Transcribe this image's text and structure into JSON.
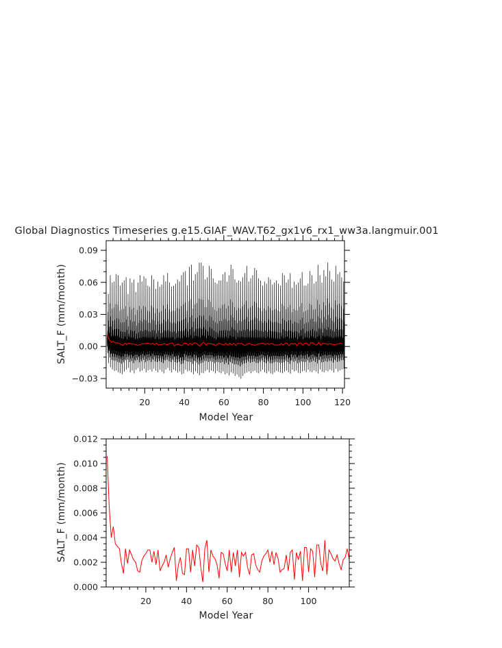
{
  "title": "Global Diagnostics Timeseries g.e15.GIAF_WAV.T62_gx1v6_rx1_ww3a.langmuir.001",
  "colors": {
    "monthly": "#000000",
    "annual": "#ff0000",
    "axis": "#000000",
    "text": "#222222"
  },
  "chart_data": [
    {
      "type": "line",
      "name": "monthly-panel",
      "xlabel": "Model Year",
      "ylabel": "SALT_F (mm/month)",
      "xlim": [
        0.5,
        121
      ],
      "ylim": [
        -0.039,
        0.099
      ],
      "xticks": [
        20,
        40,
        60,
        80,
        100,
        120
      ],
      "xtick_labels": [
        "20",
        "40",
        "60",
        "80",
        "100",
        "120"
      ],
      "yticks": [
        -0.03,
        0.0,
        0.03,
        0.06,
        0.09
      ],
      "ytick_labels": [
        "−0.03",
        "0.00",
        "0.03",
        "0.06",
        "0.09"
      ],
      "series": [
        {
          "kind": "monthly",
          "color": "#000000",
          "annual_peaks": [
            0.05,
            0.068,
            0.061,
            0.062,
            0.069,
            0.068,
            0.058,
            0.061,
            0.063,
            0.066,
            0.05,
            0.065,
            0.061,
            0.064,
            0.052,
            0.061,
            0.068,
            0.062,
            0.067,
            0.065,
            0.058,
            0.057,
            0.068,
            0.064,
            0.055,
            0.062,
            0.057,
            0.059,
            0.068,
            0.062,
            0.07,
            0.061,
            0.057,
            0.058,
            0.06,
            0.064,
            0.062,
            0.068,
            0.071,
            0.072,
            0.058,
            0.076,
            0.078,
            0.063,
            0.069,
            0.071,
            0.08,
            0.08,
            0.077,
            0.064,
            0.066,
            0.077,
            0.074,
            0.065,
            0.061,
            0.06,
            0.063,
            0.063,
            0.069,
            0.071,
            0.062,
            0.068,
            0.078,
            0.074,
            0.064,
            0.061,
            0.063,
            0.062,
            0.066,
            0.07,
            0.077,
            0.062,
            0.065,
            0.068,
            0.075,
            0.073,
            0.065,
            0.063,
            0.058,
            0.062,
            0.06,
            0.066,
            0.064,
            0.059,
            0.061,
            0.063,
            0.06,
            0.058,
            0.07,
            0.068,
            0.061,
            0.064,
            0.07,
            0.056,
            0.062,
            0.059,
            0.061,
            0.065,
            0.071,
            0.058,
            0.058,
            0.06,
            0.072,
            0.068,
            0.06,
            0.062,
            0.078,
            0.068,
            0.061,
            0.073,
            0.067,
            0.08,
            0.072,
            0.064,
            0.062,
            0.077,
            0.069,
            0.071,
            0.066,
            0.062
          ],
          "annual_troughs": [
            -0.02,
            -0.024,
            -0.026,
            -0.028,
            -0.027,
            -0.029,
            -0.03,
            -0.031,
            -0.028,
            -0.026,
            -0.024,
            -0.029,
            -0.027,
            -0.03,
            -0.026,
            -0.024,
            -0.028,
            -0.027,
            -0.025,
            -0.029,
            -0.027,
            -0.026,
            -0.028,
            -0.025,
            -0.027,
            -0.029,
            -0.026,
            -0.028,
            -0.03,
            -0.026,
            -0.024,
            -0.027,
            -0.029,
            -0.026,
            -0.027,
            -0.029,
            -0.028,
            -0.031,
            -0.03,
            -0.026,
            -0.028,
            -0.027,
            -0.029,
            -0.031,
            -0.028,
            -0.03,
            -0.032,
            -0.029,
            -0.03,
            -0.028,
            -0.026,
            -0.029,
            -0.027,
            -0.028,
            -0.03,
            -0.027,
            -0.029,
            -0.03,
            -0.028,
            -0.031,
            -0.03,
            -0.032,
            -0.029,
            -0.03,
            -0.033,
            -0.031,
            -0.034,
            -0.036,
            -0.033,
            -0.03,
            -0.029,
            -0.028,
            -0.03,
            -0.028,
            -0.027,
            -0.029,
            -0.03,
            -0.028,
            -0.026,
            -0.029,
            -0.03,
            -0.028,
            -0.03,
            -0.031,
            -0.029,
            -0.027,
            -0.028,
            -0.029,
            -0.03,
            -0.028,
            -0.027,
            -0.029,
            -0.03,
            -0.026,
            -0.028,
            -0.027,
            -0.029,
            -0.03,
            -0.028,
            -0.027,
            -0.029,
            -0.026,
            -0.028,
            -0.029,
            -0.027,
            -0.028,
            -0.03,
            -0.026,
            -0.028,
            -0.029,
            -0.027,
            -0.028,
            -0.026,
            -0.027,
            -0.029,
            -0.025,
            -0.028,
            -0.027,
            -0.026,
            -0.025
          ]
        },
        {
          "kind": "annual",
          "color": "#ff0000",
          "values_ref": "annual_mean"
        }
      ]
    },
    {
      "type": "line",
      "name": "annual-panel",
      "xlabel": "Model Year",
      "ylabel": "SALT_F (mm/month)",
      "xlim": [
        0.5,
        120
      ],
      "ylim": [
        0.0,
        0.012
      ],
      "xticks": [
        20,
        40,
        60,
        80,
        100
      ],
      "xtick_labels": [
        "20",
        "40",
        "60",
        "80",
        "100"
      ],
      "yticks": [
        0.0,
        0.002,
        0.004,
        0.006,
        0.008,
        0.01,
        0.012
      ],
      "ytick_labels": [
        "0.000",
        "0.002",
        "0.004",
        "0.006",
        "0.008",
        "0.010",
        "0.012"
      ],
      "series": [
        {
          "kind": "annual",
          "color": "#ff0000",
          "values_ref": "annual_mean"
        }
      ]
    }
  ],
  "annual_mean": {
    "x": [
      1,
      2,
      3,
      4,
      5,
      6,
      7,
      8,
      9,
      10,
      11,
      12,
      13,
      14,
      15,
      16,
      17,
      18,
      19,
      20,
      21,
      22,
      23,
      24,
      25,
      26,
      27,
      28,
      29,
      30,
      31,
      32,
      33,
      34,
      35,
      36,
      37,
      38,
      39,
      40,
      41,
      42,
      43,
      44,
      45,
      46,
      47,
      48,
      49,
      50,
      51,
      52,
      53,
      54,
      55,
      56,
      57,
      58,
      59,
      60,
      61,
      62,
      63,
      64,
      65,
      66,
      67,
      68,
      69,
      70,
      71,
      72,
      73,
      74,
      75,
      76,
      77,
      78,
      79,
      80,
      81,
      82,
      83,
      84,
      85,
      86,
      87,
      88,
      89,
      90,
      91,
      92,
      93,
      94,
      95,
      96,
      97,
      98,
      99,
      100,
      101,
      102,
      103,
      104,
      105,
      106,
      107,
      108,
      109,
      110,
      111,
      112,
      113,
      114,
      115,
      116,
      117,
      118,
      119,
      120
    ],
    "values": [
      0.0106,
      0.0065,
      0.004,
      0.0049,
      0.0035,
      0.0033,
      0.0031,
      0.0019,
      0.0011,
      0.0031,
      0.0019,
      0.003,
      0.0026,
      0.0022,
      0.002,
      0.0013,
      0.0012,
      0.0021,
      0.0025,
      0.0027,
      0.003,
      0.003,
      0.002,
      0.0029,
      0.0018,
      0.003,
      0.0013,
      0.0017,
      0.002,
      0.0026,
      0.0016,
      0.0023,
      0.0028,
      0.0032,
      0.0005,
      0.0018,
      0.0024,
      0.0011,
      0.001,
      0.0031,
      0.0031,
      0.0012,
      0.003,
      0.0017,
      0.0034,
      0.0032,
      0.0016,
      0.0004,
      0.0031,
      0.0038,
      0.0012,
      0.003,
      0.0025,
      0.0023,
      0.0018,
      0.0007,
      0.0028,
      0.0027,
      0.0019,
      0.0013,
      0.003,
      0.0012,
      0.0028,
      0.0017,
      0.003,
      0.0008,
      0.0028,
      0.0025,
      0.0028,
      0.0016,
      0.001,
      0.0026,
      0.0027,
      0.0018,
      0.0014,
      0.0012,
      0.0021,
      0.0025,
      0.0027,
      0.003,
      0.002,
      0.0029,
      0.0018,
      0.0028,
      0.0023,
      0.0012,
      0.0014,
      0.0015,
      0.0026,
      0.0013,
      0.0028,
      0.003,
      0.0006,
      0.0028,
      0.0022,
      0.0029,
      0.0005,
      0.0032,
      0.0032,
      0.0012,
      0.0031,
      0.0029,
      0.0008,
      0.0034,
      0.0034,
      0.0019,
      0.0013,
      0.0038,
      0.001,
      0.003,
      0.0027,
      0.0023,
      0.0021,
      0.0026,
      0.0019,
      0.0014,
      0.0022,
      0.0024,
      0.0031,
      0.0022
    ]
  }
}
